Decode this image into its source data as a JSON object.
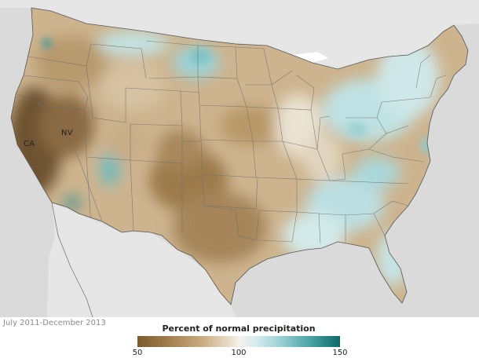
{
  "map": {
    "labels": {
      "ca": "CA",
      "nv": "NV"
    }
  },
  "footer": {
    "period": "July 2011-December 2013"
  },
  "legend": {
    "title": "Percent of normal precipitation",
    "ticks": [
      "50",
      "100",
      "150"
    ],
    "colors": {
      "low": "#7a5a2e",
      "mid": "#f6f2ea",
      "high": "#0a6b68"
    }
  }
}
